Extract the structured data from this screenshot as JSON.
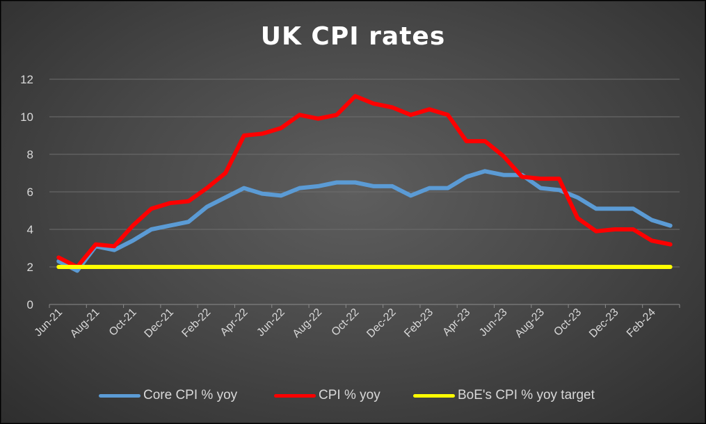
{
  "chart_data": {
    "type": "line",
    "title": "UK CPI rates",
    "xlabel": "",
    "ylabel": "",
    "ylim": [
      0,
      12
    ],
    "yticks": [
      "0",
      "2",
      "4",
      "6",
      "8",
      "10",
      "12"
    ],
    "grid": true,
    "legend_position": "bottom",
    "x": [
      "Jun-21",
      "Jul-21",
      "Aug-21",
      "Sep-21",
      "Oct-21",
      "Nov-21",
      "Dec-21",
      "Jan-22",
      "Feb-22",
      "Mar-22",
      "Apr-22",
      "May-22",
      "Jun-22",
      "Jul-22",
      "Aug-22",
      "Sep-22",
      "Oct-22",
      "Nov-22",
      "Dec-22",
      "Jan-23",
      "Feb-23",
      "Mar-23",
      "Apr-23",
      "May-23",
      "Jun-23",
      "Jul-23",
      "Aug-23",
      "Sep-23",
      "Oct-23",
      "Nov-23",
      "Dec-23",
      "Jan-24",
      "Feb-24",
      "Mar-24"
    ],
    "x_tick_labels": [
      "Jun-21",
      "Aug-21",
      "Oct-21",
      "Dec-21",
      "Feb-22",
      "Apr-22",
      "Jun-22",
      "Aug-22",
      "Oct-22",
      "Dec-22",
      "Feb-23",
      "Apr-23",
      "Jun-23",
      "Aug-23",
      "Oct-23",
      "Dec-23",
      "Feb-24"
    ],
    "series": [
      {
        "name": "Core CPI % yoy",
        "color": "#5b9bd5",
        "values": [
          2.3,
          1.8,
          3.1,
          2.9,
          3.4,
          4.0,
          4.2,
          4.4,
          5.2,
          5.7,
          6.2,
          5.9,
          5.8,
          6.2,
          6.3,
          6.5,
          6.5,
          6.3,
          6.3,
          5.8,
          6.2,
          6.2,
          6.8,
          7.1,
          6.9,
          6.9,
          6.2,
          6.1,
          5.7,
          5.1,
          5.1,
          5.1,
          4.5,
          4.2
        ]
      },
      {
        "name": "CPI % yoy",
        "color": "#ff0000",
        "values": [
          2.5,
          2.0,
          3.2,
          3.1,
          4.2,
          5.1,
          5.4,
          5.5,
          6.2,
          7.0,
          9.0,
          9.1,
          9.4,
          10.1,
          9.9,
          10.1,
          11.1,
          10.7,
          10.5,
          10.1,
          10.4,
          10.1,
          8.7,
          8.7,
          7.9,
          6.8,
          6.7,
          6.7,
          4.6,
          3.9,
          4.0,
          4.0,
          3.4,
          3.2
        ]
      },
      {
        "name": "BoE's CPI % yoy target",
        "color": "#ffff00",
        "values": [
          2,
          2,
          2,
          2,
          2,
          2,
          2,
          2,
          2,
          2,
          2,
          2,
          2,
          2,
          2,
          2,
          2,
          2,
          2,
          2,
          2,
          2,
          2,
          2,
          2,
          2,
          2,
          2,
          2,
          2,
          2,
          2,
          2,
          2
        ]
      }
    ]
  }
}
